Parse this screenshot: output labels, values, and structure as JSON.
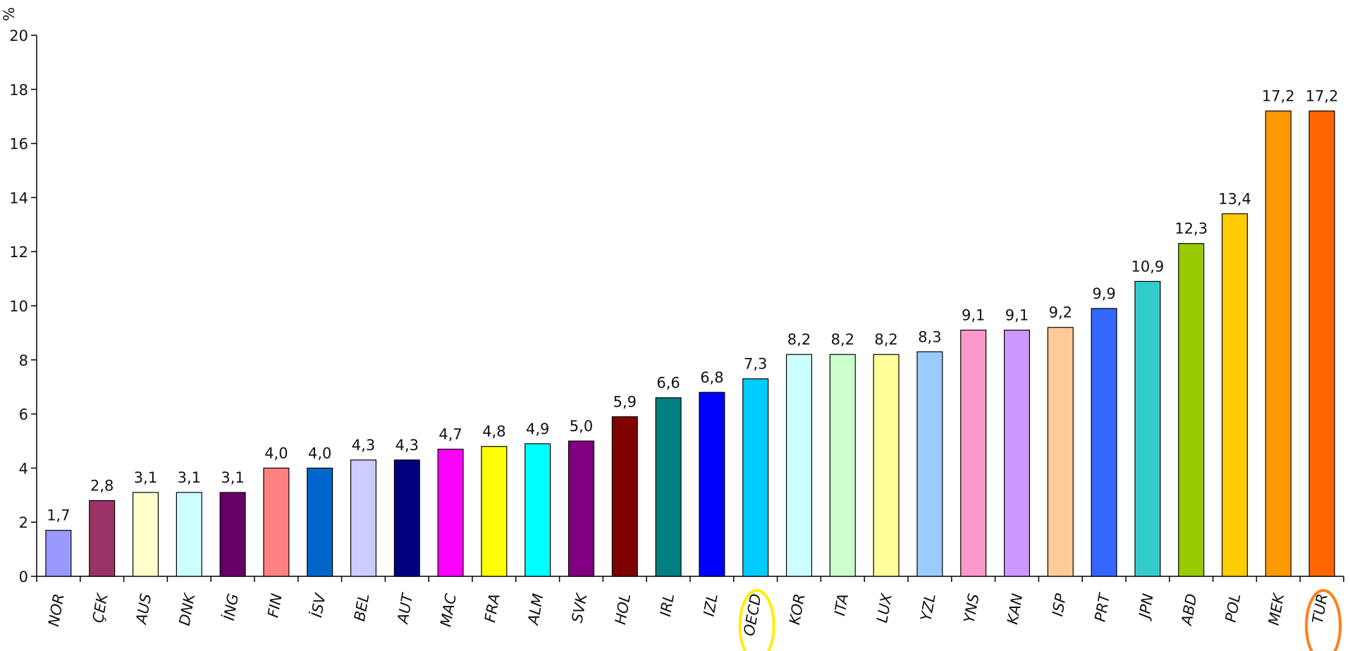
{
  "chart_data": {
    "type": "bar",
    "y_label": "%",
    "categories": [
      "NOR",
      "ÇEK",
      "AUS",
      "DNK",
      "İNG",
      "FIN",
      "İSV",
      "BEL",
      "AUT",
      "MAC",
      "FRA",
      "ALM",
      "SVK",
      "HOL",
      "IRL",
      "IZL",
      "OECD",
      "KOR",
      "ITA",
      "LUX",
      "YZL",
      "YNS",
      "KAN",
      "ISP",
      "PRT",
      "JPN",
      "ABD",
      "POL",
      "MEK",
      "TUR"
    ],
    "values": [
      1.7,
      2.8,
      3.1,
      3.1,
      3.1,
      4.0,
      4.0,
      4.3,
      4.3,
      4.7,
      4.8,
      4.9,
      5.0,
      5.9,
      6.6,
      6.8,
      7.3,
      8.2,
      8.2,
      8.2,
      8.3,
      9.1,
      9.1,
      9.2,
      9.9,
      10.9,
      12.3,
      13.4,
      17.2,
      17.2
    ],
    "value_labels": [
      "1,7",
      "2,8",
      "3,1",
      "3,1",
      "3,1",
      "4,0",
      "4,0",
      "4,3",
      "4,3",
      "4,7",
      "4,8",
      "4,9",
      "5,0",
      "5,9",
      "6,6",
      "6,8",
      "7,3",
      "8,2",
      "8,2",
      "8,2",
      "8,3",
      "9,1",
      "9,1",
      "9,2",
      "9,9",
      "10,9",
      "12,3",
      "13,4",
      "17,2",
      "17,2"
    ],
    "colors": [
      "#9999ff",
      "#993366",
      "#ffffcc",
      "#ccffff",
      "#660066",
      "#ff8080",
      "#0066cc",
      "#ccccff",
      "#000080",
      "#ff00ff",
      "#ffff00",
      "#00ffff",
      "#800080",
      "#800000",
      "#008080",
      "#0000ff",
      "#00ccff",
      "#ccffff",
      "#ccffcc",
      "#ffff99",
      "#99ccff",
      "#ff99cc",
      "#cc99ff",
      "#ffcc99",
      "#3366ff",
      "#33cccc",
      "#99cc00",
      "#ffcc00",
      "#ff9900",
      "#ff6600"
    ],
    "ylim": [
      0,
      20
    ],
    "yticks": [
      0,
      2,
      4,
      6,
      8,
      10,
      12,
      14,
      16,
      18,
      20
    ]
  }
}
